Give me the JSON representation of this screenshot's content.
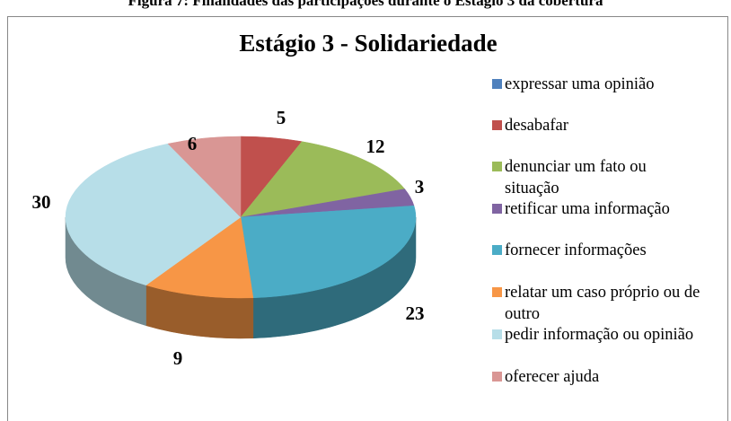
{
  "caption": "Figura 7: Finalidades das participações durante o Estágio 3 da cobertura",
  "chart_data": {
    "type": "pie3d",
    "title": "Estágio 3 - Solidariedade",
    "categories": [
      "expressar uma opinião",
      "desabafar",
      "denunciar um fato ou situação",
      "retificar uma informação",
      "fornecer informações",
      "relatar um caso próprio ou de outro",
      "pedir informação ou opinião",
      "oferecer ajuda"
    ],
    "values": [
      0,
      5,
      12,
      3,
      23,
      9,
      30,
      6
    ],
    "colors": [
      "#4f81bd",
      "#c0504d",
      "#9bbb59",
      "#8064a2",
      "#4bacc6",
      "#f79646",
      "#b7dee8",
      "#d99694"
    ],
    "legend": "right"
  }
}
